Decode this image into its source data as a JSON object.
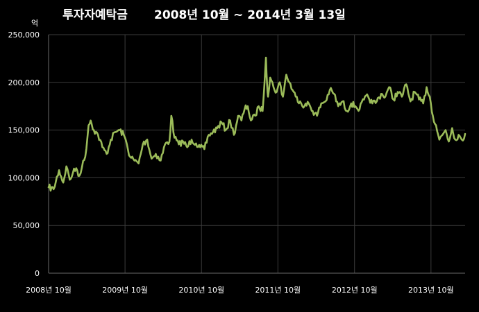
{
  "chart_data": {
    "type": "line",
    "title": "투자자예탁금 2008년 10월 ~ 2014년 3월 13일",
    "title_part1": "투자자예탁금",
    "title_part2": "2008년 10월 ~ 2014년 3월 13일",
    "ylabel": "억",
    "xlabel": "",
    "ylim": [
      0,
      250000
    ],
    "yticks": [
      "0",
      "50,000",
      "100,000",
      "150,000",
      "200,000",
      "250,000"
    ],
    "ytick_values": [
      0,
      50000,
      100000,
      150000,
      200000,
      250000
    ],
    "xlim": [
      "2008-10-01",
      "2014-03-13"
    ],
    "xticks": [
      "2008년 10월",
      "2009년 10월",
      "2010년 10월",
      "2011년 10월",
      "2012년 10월",
      "2013년 10월"
    ],
    "xtick_dates": [
      "2008-10-01",
      "2009-10-01",
      "2010-10-01",
      "2011-10-01",
      "2012-10-01",
      "2013-10-01"
    ],
    "grid": true,
    "legend": "none",
    "series_color": "#9bbb59",
    "background": "#000000",
    "series": [
      {
        "x": [
          "2008-10-01",
          "2008-10-25",
          "2008-11-20",
          "2008-12-10",
          "2008-12-25",
          "2009-01-10",
          "2009-01-25",
          "2009-02-10",
          "2009-02-25",
          "2009-03-10",
          "2009-03-25",
          "2009-04-10",
          "2009-04-20",
          "2009-05-05",
          "2009-05-25",
          "2009-06-15",
          "2009-07-05",
          "2009-07-25",
          "2009-08-15",
          "2009-09-05",
          "2009-09-25",
          "2009-10-10",
          "2009-10-25",
          "2009-11-15",
          "2009-12-05",
          "2009-12-25",
          "2010-01-15",
          "2010-02-05",
          "2010-02-25",
          "2010-03-20",
          "2010-04-10",
          "2010-05-01",
          "2010-05-10",
          "2010-05-25",
          "2010-06-15",
          "2010-07-05",
          "2010-07-25",
          "2010-08-15",
          "2010-09-05",
          "2010-09-25",
          "2010-10-15",
          "2010-11-05",
          "2010-11-25",
          "2010-12-15",
          "2011-01-05",
          "2011-01-25",
          "2011-02-15",
          "2011-03-05",
          "2011-03-25",
          "2011-04-10",
          "2011-04-25",
          "2011-05-10",
          "2011-05-25",
          "2011-06-15",
          "2011-07-01",
          "2011-07-20",
          "2011-08-05",
          "2011-08-10",
          "2011-08-15",
          "2011-08-25",
          "2011-09-10",
          "2011-09-25",
          "2011-10-10",
          "2011-10-25",
          "2011-11-10",
          "2011-11-25",
          "2011-12-10",
          "2011-12-25",
          "2012-01-15",
          "2012-02-05",
          "2012-02-25",
          "2012-03-15",
          "2012-04-05",
          "2012-04-25",
          "2012-05-15",
          "2012-06-05",
          "2012-06-25",
          "2012-07-15",
          "2012-08-05",
          "2012-08-25",
          "2012-09-15",
          "2012-10-05",
          "2012-10-25",
          "2012-11-15",
          "2012-12-05",
          "2012-12-25",
          "2013-01-15",
          "2013-02-05",
          "2013-02-25",
          "2013-03-15",
          "2013-04-05",
          "2013-04-25",
          "2013-05-15",
          "2013-06-05",
          "2013-06-25",
          "2013-07-15",
          "2013-08-05",
          "2013-08-25",
          "2013-09-10",
          "2013-09-25",
          "2013-10-10",
          "2013-10-25",
          "2013-11-10",
          "2013-11-25",
          "2013-12-10",
          "2013-12-25",
          "2014-01-10",
          "2014-01-25",
          "2014-02-10",
          "2014-02-25",
          "2014-03-13"
        ],
        "y": [
          90000,
          88000,
          108000,
          95000,
          112000,
          98000,
          105000,
          110000,
          102000,
          112000,
          122000,
          155000,
          160000,
          150000,
          145000,
          132000,
          125000,
          140000,
          148000,
          150000,
          145000,
          135000,
          122000,
          118000,
          115000,
          135000,
          140000,
          120000,
          125000,
          118000,
          135000,
          138000,
          165000,
          142000,
          135000,
          138000,
          132000,
          140000,
          136000,
          132000,
          130000,
          145000,
          148000,
          152000,
          158000,
          150000,
          160000,
          145000,
          165000,
          160000,
          172000,
          175000,
          160000,
          165000,
          175000,
          170000,
          226000,
          200000,
          185000,
          205000,
          195000,
          190000,
          200000,
          185000,
          208000,
          200000,
          192000,
          185000,
          180000,
          175000,
          178000,
          170000,
          165000,
          178000,
          180000,
          192000,
          188000,
          175000,
          180000,
          170000,
          178000,
          175000,
          172000,
          182000,
          185000,
          178000,
          180000,
          188000,
          185000,
          195000,
          182000,
          190000,
          185000,
          198000,
          180000,
          190000,
          182000,
          178000,
          195000,
          185000,
          165000,
          155000,
          140000,
          145000,
          150000,
          138000,
          152000,
          140000,
          145000,
          140000,
          146000
        ]
      }
    ]
  }
}
